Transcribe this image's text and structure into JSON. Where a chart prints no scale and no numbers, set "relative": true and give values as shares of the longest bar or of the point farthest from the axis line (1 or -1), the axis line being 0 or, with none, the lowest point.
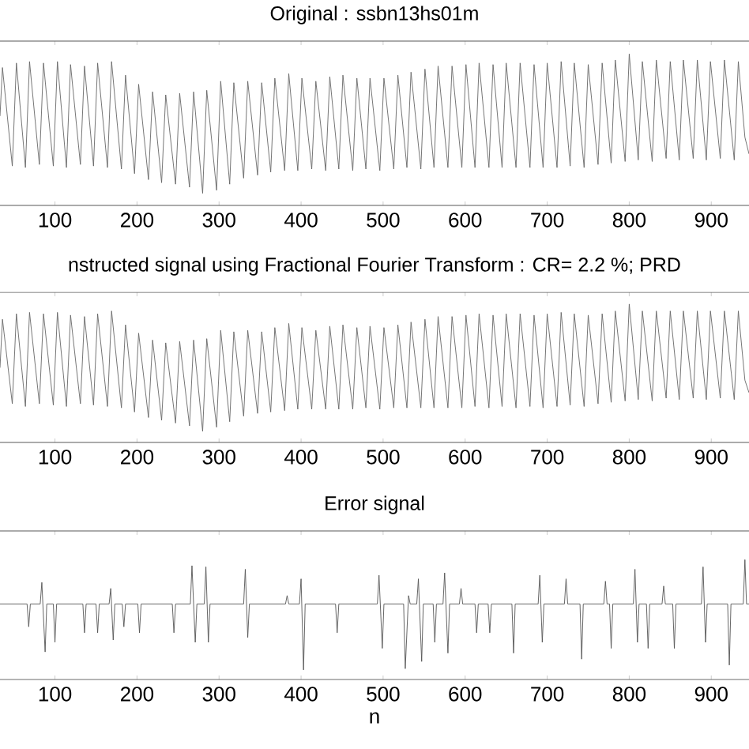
{
  "chart_data": [
    {
      "type": "line",
      "title": "Original : ssbn13hs01m",
      "relative": true,
      "tick_labels": "x",
      "color": "#666666",
      "xlim": [
        33,
        946
      ],
      "xticks": [
        100,
        200,
        300,
        400,
        500,
        600,
        700,
        800,
        900
      ],
      "x": [
        33,
        36,
        48,
        53,
        64,
        69,
        81,
        86,
        98,
        103,
        114,
        119,
        131,
        136,
        147,
        152,
        164,
        169,
        181,
        186,
        197,
        202,
        214,
        219,
        230,
        235,
        247,
        252,
        264,
        269,
        280,
        285,
        297,
        302,
        313,
        318,
        330,
        335,
        347,
        352,
        363,
        368,
        380,
        385,
        396,
        401,
        413,
        418,
        430,
        435,
        446,
        451,
        463,
        468,
        479,
        484,
        496,
        501,
        513,
        518,
        529,
        534,
        546,
        551,
        562,
        567,
        579,
        584,
        596,
        601,
        612,
        617,
        629,
        634,
        645,
        650,
        662,
        667,
        679,
        684,
        695,
        700,
        712,
        717,
        728,
        733,
        745,
        750,
        762,
        767,
        778,
        783,
        795,
        800,
        811,
        816,
        828,
        833,
        845,
        850,
        861,
        866,
        878,
        883,
        894,
        899,
        911,
        916,
        928,
        933,
        941,
        946
      ],
      "values": [
        0.59,
        0.91,
        0.26,
        0.94,
        0.25,
        0.95,
        0.27,
        0.94,
        0.26,
        0.95,
        0.25,
        0.93,
        0.27,
        0.92,
        0.26,
        0.94,
        0.25,
        0.95,
        0.24,
        0.86,
        0.21,
        0.8,
        0.17,
        0.75,
        0.15,
        0.73,
        0.14,
        0.74,
        0.12,
        0.75,
        0.08,
        0.76,
        0.1,
        0.82,
        0.14,
        0.81,
        0.18,
        0.82,
        0.2,
        0.81,
        0.22,
        0.84,
        0.23,
        0.87,
        0.23,
        0.84,
        0.24,
        0.82,
        0.23,
        0.85,
        0.24,
        0.86,
        0.23,
        0.84,
        0.24,
        0.84,
        0.23,
        0.84,
        0.24,
        0.86,
        0.25,
        0.88,
        0.24,
        0.9,
        0.25,
        0.92,
        0.25,
        0.92,
        0.25,
        0.93,
        0.25,
        0.94,
        0.25,
        0.93,
        0.25,
        0.94,
        0.25,
        0.94,
        0.25,
        0.93,
        0.25,
        0.94,
        0.25,
        0.95,
        0.26,
        0.94,
        0.25,
        0.93,
        0.27,
        0.94,
        0.28,
        0.96,
        0.29,
        1.0,
        0.3,
        0.95,
        0.29,
        0.96,
        0.31,
        0.95,
        0.3,
        0.96,
        0.31,
        0.96,
        0.3,
        0.95,
        0.31,
        0.96,
        0.3,
        0.95,
        0.45,
        0.34
      ]
    },
    {
      "type": "line",
      "title": "nstructed signal using Fractional Fourier Transform : CR= 2.2 %; PRD",
      "relative": true,
      "tick_labels": "x",
      "color": "#666666",
      "xlim": [
        33,
        946
      ],
      "xticks": [
        100,
        200,
        300,
        400,
        500,
        600,
        700,
        800,
        900
      ],
      "x": [
        33,
        36,
        48,
        53,
        64,
        69,
        81,
        86,
        98,
        103,
        114,
        119,
        131,
        136,
        147,
        152,
        164,
        169,
        181,
        186,
        197,
        202,
        214,
        219,
        230,
        235,
        247,
        252,
        264,
        269,
        280,
        285,
        297,
        302,
        313,
        318,
        330,
        335,
        347,
        352,
        363,
        368,
        380,
        385,
        396,
        401,
        413,
        418,
        430,
        435,
        446,
        451,
        463,
        468,
        479,
        484,
        496,
        501,
        513,
        518,
        529,
        534,
        546,
        551,
        562,
        567,
        579,
        584,
        596,
        601,
        612,
        617,
        629,
        634,
        645,
        650,
        662,
        667,
        679,
        684,
        695,
        700,
        712,
        717,
        728,
        733,
        745,
        750,
        762,
        767,
        778,
        783,
        795,
        800,
        811,
        816,
        828,
        833,
        845,
        850,
        861,
        866,
        878,
        883,
        894,
        899,
        911,
        916,
        928,
        933,
        941,
        946
      ],
      "values": [
        0.54,
        0.89,
        0.28,
        0.93,
        0.26,
        0.94,
        0.28,
        0.93,
        0.27,
        0.94,
        0.26,
        0.92,
        0.28,
        0.91,
        0.27,
        0.93,
        0.26,
        0.95,
        0.25,
        0.85,
        0.22,
        0.79,
        0.18,
        0.74,
        0.16,
        0.72,
        0.14,
        0.73,
        0.12,
        0.74,
        0.08,
        0.75,
        0.11,
        0.81,
        0.15,
        0.8,
        0.19,
        0.81,
        0.21,
        0.8,
        0.22,
        0.83,
        0.23,
        0.86,
        0.24,
        0.83,
        0.24,
        0.81,
        0.24,
        0.84,
        0.24,
        0.85,
        0.24,
        0.83,
        0.25,
        0.84,
        0.24,
        0.83,
        0.25,
        0.85,
        0.25,
        0.87,
        0.25,
        0.89,
        0.25,
        0.91,
        0.25,
        0.91,
        0.25,
        0.92,
        0.26,
        0.93,
        0.25,
        0.92,
        0.26,
        0.93,
        0.25,
        0.93,
        0.26,
        0.92,
        0.25,
        0.93,
        0.26,
        0.94,
        0.27,
        0.93,
        0.26,
        0.92,
        0.28,
        0.93,
        0.29,
        0.95,
        0.3,
        1.0,
        0.31,
        0.95,
        0.3,
        0.95,
        0.32,
        0.95,
        0.31,
        0.95,
        0.32,
        0.95,
        0.31,
        0.95,
        0.32,
        0.95,
        0.31,
        0.95,
        0.45,
        0.36
      ]
    },
    {
      "type": "line",
      "title": "Error signal",
      "xlabel": "n",
      "relative": true,
      "tick_labels": "x",
      "color": "#555555",
      "xlim": [
        33,
        946
      ],
      "xticks": [
        100,
        200,
        300,
        400,
        500,
        600,
        700,
        800,
        900
      ],
      "x": [
        33,
        66,
        68,
        70,
        82,
        84,
        88,
        90,
        98,
        100,
        102,
        134,
        136,
        138,
        150,
        152,
        154,
        166,
        168,
        171,
        173,
        182,
        184,
        186,
        201,
        203,
        205,
        243,
        245,
        247,
        265,
        267,
        271,
        273,
        282,
        284,
        287,
        289,
        330,
        332,
        335,
        337,
        381,
        383,
        385,
        398,
        400,
        403,
        405,
        442,
        444,
        446,
        493,
        495,
        499,
        501,
        525,
        527,
        531,
        533,
        541,
        543,
        547,
        549,
        561,
        563,
        565,
        573,
        575,
        579,
        581,
        593,
        595,
        597,
        612,
        614,
        616,
        628,
        630,
        632,
        657,
        659,
        661,
        689,
        691,
        694,
        696,
        721,
        723,
        725,
        740,
        742,
        744,
        769,
        771,
        773,
        776,
        778,
        780,
        805,
        807,
        810,
        812,
        821,
        823,
        825,
        840,
        842,
        844,
        853,
        855,
        857,
        888,
        890,
        893,
        895,
        920,
        922,
        924,
        939,
        941,
        943,
        946
      ],
      "values": [
        0.63,
        0.63,
        0.44,
        0.63,
        0.63,
        0.81,
        0.23,
        0.63,
        0.63,
        0.31,
        0.63,
        0.63,
        0.39,
        0.63,
        0.63,
        0.39,
        0.63,
        0.63,
        0.76,
        0.33,
        0.63,
        0.63,
        0.44,
        0.63,
        0.63,
        0.39,
        0.63,
        0.63,
        0.39,
        0.63,
        0.63,
        0.95,
        0.31,
        0.63,
        0.63,
        0.94,
        0.31,
        0.63,
        0.63,
        0.92,
        0.35,
        0.63,
        0.63,
        0.7,
        0.63,
        0.63,
        0.84,
        0.08,
        0.63,
        0.63,
        0.39,
        0.63,
        0.63,
        0.87,
        0.26,
        0.63,
        0.63,
        0.09,
        0.7,
        0.63,
        0.63,
        0.84,
        0.15,
        0.63,
        0.63,
        0.31,
        0.63,
        0.63,
        0.89,
        0.22,
        0.63,
        0.63,
        0.76,
        0.63,
        0.63,
        0.39,
        0.63,
        0.63,
        0.39,
        0.63,
        0.63,
        0.22,
        0.63,
        0.63,
        0.87,
        0.31,
        0.63,
        0.63,
        0.84,
        0.63,
        0.63,
        0.17,
        0.63,
        0.63,
        0.82,
        0.63,
        0.63,
        0.26,
        0.63,
        0.63,
        0.92,
        0.31,
        0.63,
        0.63,
        0.26,
        0.63,
        0.63,
        0.78,
        0.63,
        0.63,
        0.26,
        0.63,
        0.63,
        0.94,
        0.31,
        0.63,
        0.63,
        0.12,
        0.63,
        0.63,
        1.0,
        0.63,
        0.63
      ]
    }
  ]
}
